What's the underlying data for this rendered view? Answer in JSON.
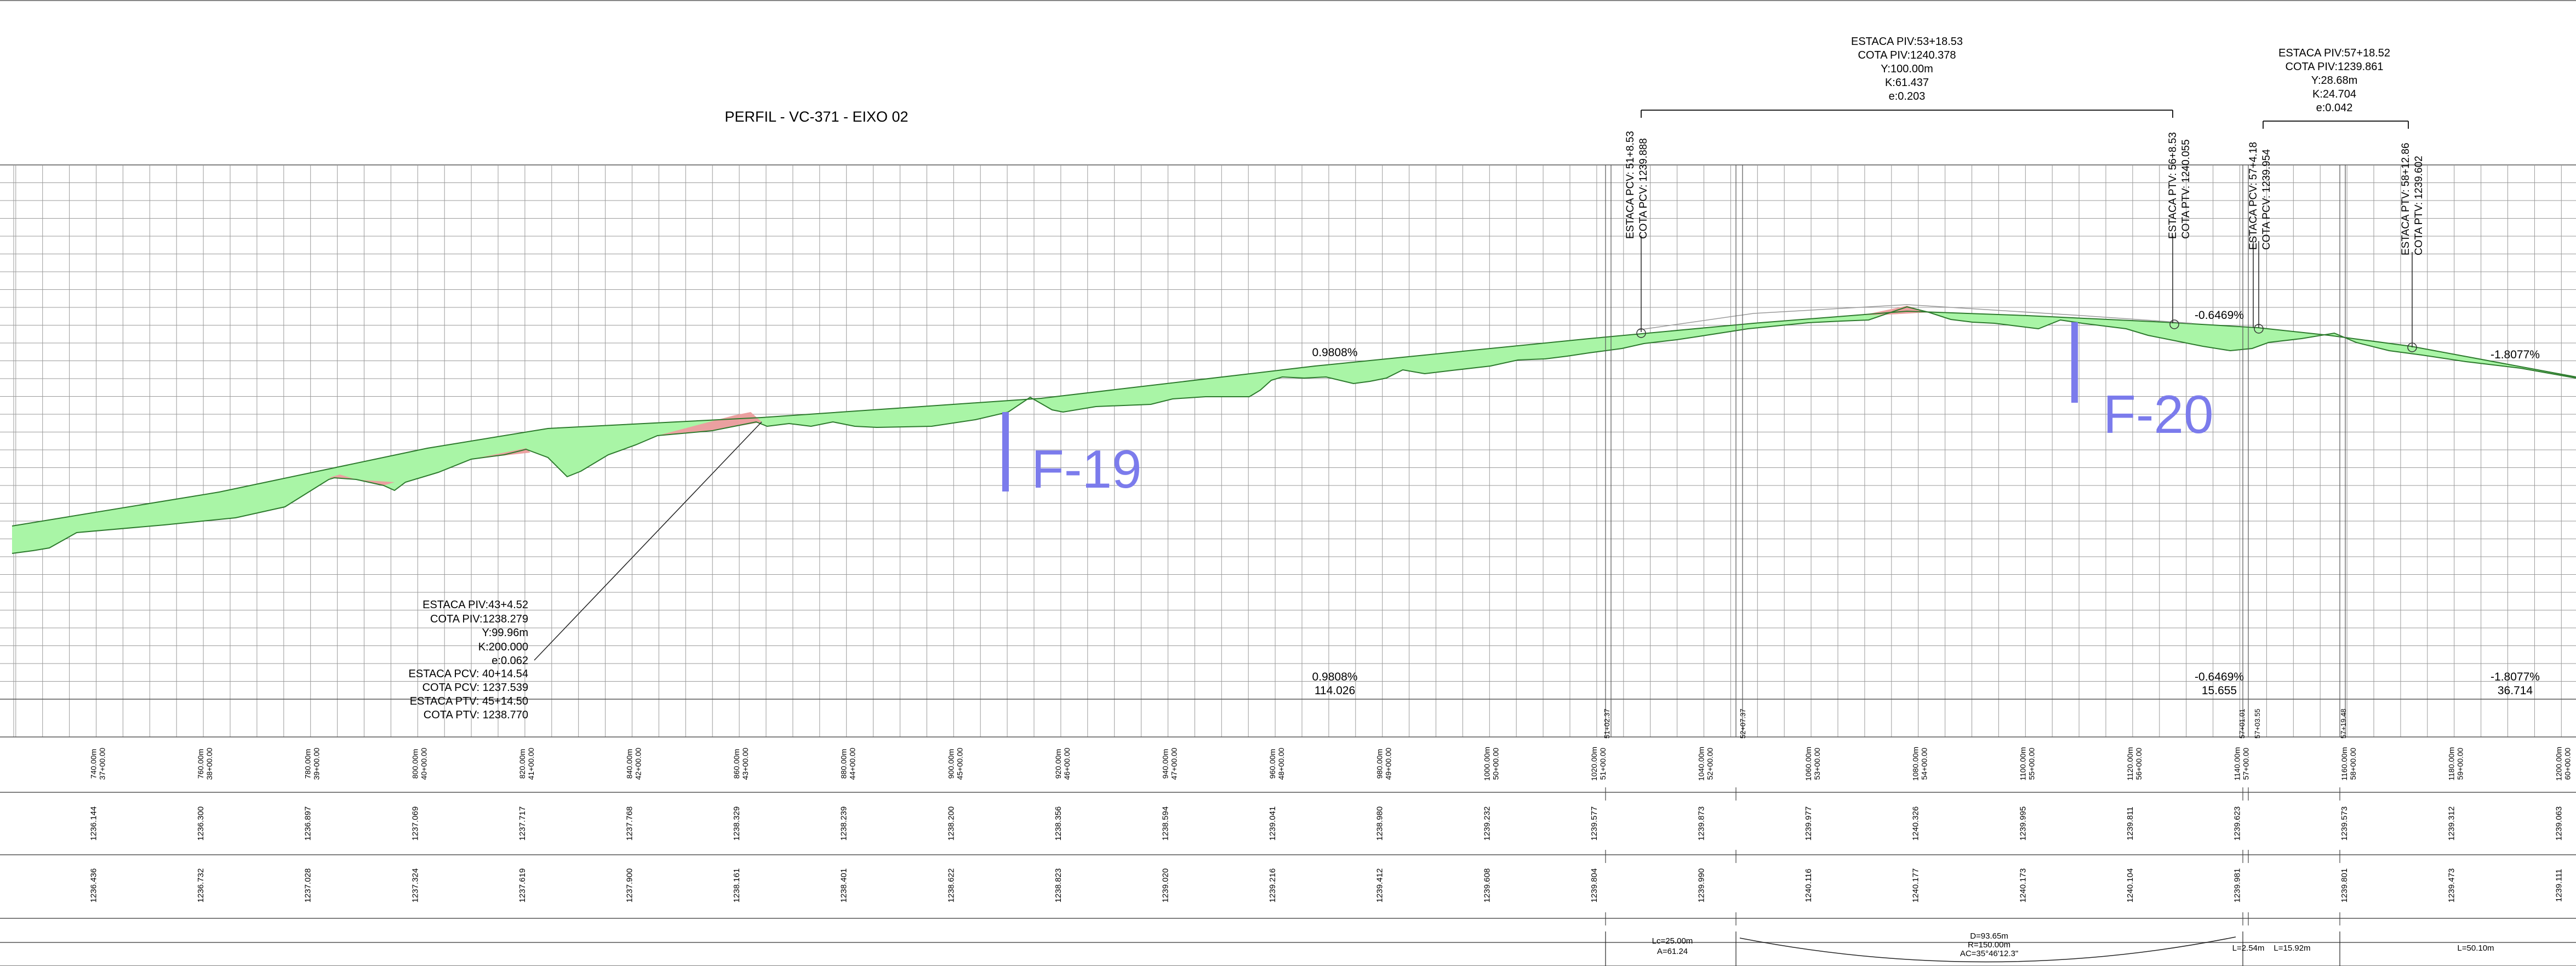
{
  "title": "PERFIL - VC-371 - EIXO 02",
  "markers": [
    {
      "label": "F-19"
    },
    {
      "label": "F-20"
    }
  ],
  "piv_blocks": [
    {
      "lines": [
        "ESTACA PIV:43+4.52",
        "COTA PIV:1238.279",
        "Y:99.96m",
        "K:200.000",
        "e:0.062",
        "ESTACA PCV: 40+14.54",
        "COTA PCV: 1237.539",
        "ESTACA PTV: 45+14.50",
        "COTA PTV: 1238.770"
      ]
    },
    {
      "lines": [
        "ESTACA PIV:53+18.53",
        "COTA PIV:1240.378",
        "Y:100.00m",
        "K:61.437",
        "e:0.203"
      ]
    },
    {
      "lines": [
        "ESTACA PIV:57+18.52",
        "COTA PIV:1239.861",
        "Y:28.68m",
        "K:24.704",
        "e:0.042"
      ]
    }
  ],
  "vertical_labels": [
    {
      "line1": "ESTACA PCV: 51+8.53",
      "line2": "COTA PCV: 1239.888"
    },
    {
      "line1": "ESTACA PTV: 56+8.53",
      "line2": "COTA PTV: 1240.055"
    },
    {
      "line1": "ESTACA PCV: 57+4.18",
      "line2": "COTA PCV: 1239.954"
    },
    {
      "line1": "ESTACA PTV: 58+12.86",
      "line2": "COTA PTV: 1239.602"
    }
  ],
  "grades": [
    {
      "value": "0.9808%",
      "length": "114.026"
    },
    {
      "value": "-0.6469%",
      "length": "15.655"
    },
    {
      "value": "-1.8077%",
      "length": "36.714"
    }
  ],
  "station_marks": [
    "51+02.37",
    "52+07.37",
    "57+01.01",
    "57+03.55",
    "57+19.48"
  ],
  "stations": [
    {
      "dist": "740.00m",
      "est": "37+00.00",
      "terrain": "1236.144",
      "grade": "1236.436"
    },
    {
      "dist": "760.00m",
      "est": "38+00.00",
      "terrain": "1236.300",
      "grade": "1236.732"
    },
    {
      "dist": "780.00m",
      "est": "39+00.00",
      "terrain": "1236.897",
      "grade": "1237.028"
    },
    {
      "dist": "800.00m",
      "est": "40+00.00",
      "terrain": "1237.069",
      "grade": "1237.324"
    },
    {
      "dist": "820.00m",
      "est": "41+00.00",
      "terrain": "1237.717",
      "grade": "1237.619"
    },
    {
      "dist": "840.00m",
      "est": "42+00.00",
      "terrain": "1237.768",
      "grade": "1237.900"
    },
    {
      "dist": "860.00m",
      "est": "43+00.00",
      "terrain": "1238.329",
      "grade": "1238.161"
    },
    {
      "dist": "880.00m",
      "est": "44+00.00",
      "terrain": "1238.239",
      "grade": "1238.401"
    },
    {
      "dist": "900.00m",
      "est": "45+00.00",
      "terrain": "1238.200",
      "grade": "1238.622"
    },
    {
      "dist": "920.00m",
      "est": "46+00.00",
      "terrain": "1238.356",
      "grade": "1238.823"
    },
    {
      "dist": "940.00m",
      "est": "47+00.00",
      "terrain": "1238.594",
      "grade": "1239.020"
    },
    {
      "dist": "960.00m",
      "est": "48+00.00",
      "terrain": "1239.041",
      "grade": "1239.216"
    },
    {
      "dist": "980.00m",
      "est": "49+00.00",
      "terrain": "1238.980",
      "grade": "1239.412"
    },
    {
      "dist": "1000.00m",
      "est": "50+00.00",
      "terrain": "1239.232",
      "grade": "1239.608"
    },
    {
      "dist": "1020.00m",
      "est": "51+00.00",
      "terrain": "1239.577",
      "grade": "1239.804"
    },
    {
      "dist": "1040.00m",
      "est": "52+00.00",
      "terrain": "1239.873",
      "grade": "1239.990"
    },
    {
      "dist": "1060.00m",
      "est": "53+00.00",
      "terrain": "1239.977",
      "grade": "1240.116"
    },
    {
      "dist": "1080.00m",
      "est": "54+00.00",
      "terrain": "1240.326",
      "grade": "1240.177"
    },
    {
      "dist": "1100.00m",
      "est": "55+00.00",
      "terrain": "1239.995",
      "grade": "1240.173"
    },
    {
      "dist": "1120.00m",
      "est": "56+00.00",
      "terrain": "1239.811",
      "grade": "1240.104"
    },
    {
      "dist": "1140.00m",
      "est": "57+00.00",
      "terrain": "1239.623",
      "grade": "1239.981"
    },
    {
      "dist": "1160.00m",
      "est": "58+00.00",
      "terrain": "1239.573",
      "grade": "1239.801"
    },
    {
      "dist": "1180.00m",
      "est": "59+00.00",
      "terrain": "1239.312",
      "grade": "1239.473"
    },
    {
      "dist": "1200.00m",
      "est": "60+00.00",
      "terrain": "1239.063",
      "grade": "1239.111"
    }
  ],
  "curves": [
    {
      "lines": [
        "Lc=25.00m",
        "A=61.24"
      ]
    },
    {
      "lines": [
        "D=93.65m",
        "R=150.00m",
        "AC=35°46'12.3\""
      ]
    },
    {
      "lines": [
        "L=2.54m"
      ]
    },
    {
      "lines": [
        "L=15.92m"
      ]
    },
    {
      "lines": [
        "L=50.10m"
      ]
    }
  ],
  "colors": {
    "fill": "#a9f5a6",
    "cut": "#eba0a0",
    "marker": "#7b7bec",
    "grid": "#9a9a9a"
  }
}
